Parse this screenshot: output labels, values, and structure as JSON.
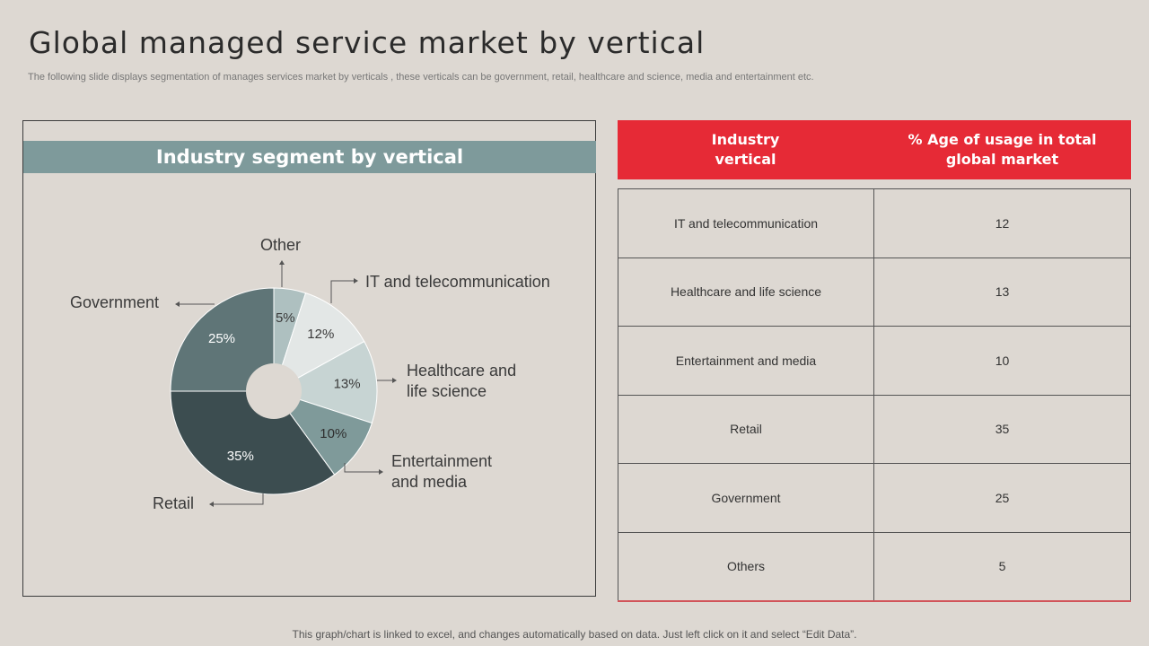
{
  "page": {
    "title": "Global managed service market by vertical",
    "subtitle": "The following slide displays segmentation of manages services market by verticals , these verticals can be government, retail, healthcare and science, media and entertainment etc.",
    "footer": "This graph/chart is linked to excel, and changes automatically based on data. Just left click on it and select “Edit Data”."
  },
  "chart_panel": {
    "header": "Industry segment by vertical"
  },
  "chart_data": {
    "type": "pie",
    "title": "Industry segment by vertical",
    "slices": [
      {
        "label": "Other",
        "value": 5,
        "value_label": "5%",
        "color": "#aec0c0",
        "text_color": "#3a3a3a"
      },
      {
        "label": "IT and telecommunication",
        "value": 12,
        "value_label": "12%",
        "color": "#e3e7e6",
        "text_color": "#3a3a3a"
      },
      {
        "label": "Healthcare and life science",
        "value": 13,
        "value_label": "13%",
        "color": "#c7d4d3",
        "text_color": "#3a3a3a"
      },
      {
        "label": "Entertainment and media",
        "value": 10,
        "value_label": "10%",
        "color": "#7f9a9a",
        "text_color": "#2f2f2f"
      },
      {
        "label": "Retail",
        "value": 35,
        "value_label": "35%",
        "color": "#3c4d50",
        "text_color": "#ffffff"
      },
      {
        "label": "Government",
        "value": 25,
        "value_label": "25%",
        "color": "#5f7577",
        "text_color": "#ffffff"
      }
    ],
    "callouts": {
      "other": "Other",
      "it": "IT and telecommunication",
      "health_1": "Healthcare and",
      "health_2": "life science",
      "ent_1": "Entertainment",
      "ent_2": "and media",
      "retail": "Retail",
      "government": "Government"
    }
  },
  "table": {
    "headers": [
      "Industry vertical",
      "% Age of usage in total global market"
    ],
    "header_lines": [
      [
        "Industry",
        "vertical"
      ],
      [
        "% Age of usage in total",
        "global market"
      ]
    ],
    "rows": [
      [
        "IT and telecommunication",
        "12"
      ],
      [
        "Healthcare and life science",
        "13"
      ],
      [
        "Entertainment and media",
        "10"
      ],
      [
        "Retail",
        "35"
      ],
      [
        "Government",
        "25"
      ],
      [
        "Others",
        "5"
      ]
    ]
  },
  "colors": {
    "accent_red": "#e62a36",
    "header_teal": "#7e9a9b",
    "background": "#ddd8d2"
  }
}
